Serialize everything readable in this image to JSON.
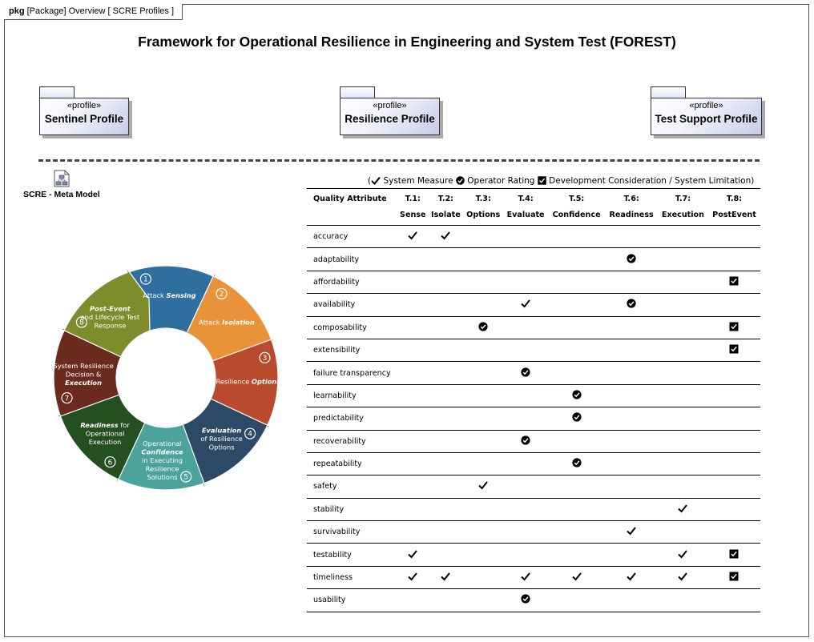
{
  "frame": {
    "kind": "pkg",
    "label": "[Package] Overview [ SCRE Profiles ]"
  },
  "title": "Framework for Operational Resilience in Engineering and System Test (FOREST)",
  "profiles": [
    {
      "stereotype": "«profile»",
      "name": "Sentinel Profile"
    },
    {
      "stereotype": "«profile»",
      "name": "Resilience Profile"
    },
    {
      "stereotype": "«profile»",
      "name": "Test Support Profile"
    }
  ],
  "meta_model": {
    "label": "SCRE - Meta Model",
    "icon": "diagram-icon"
  },
  "legend": {
    "open": "(",
    "system_measure": "System Measure",
    "operator_rating": "Operator Rating",
    "development_consideration": "Development Consideration / System Limitation)"
  },
  "cycle": {
    "colors": [
      "#2f6f9f",
      "#e8923a",
      "#b84a2e",
      "#2c4a66",
      "#4ba39b",
      "#244f1f",
      "#6b2a1e",
      "#7f8c2c"
    ],
    "steps": [
      {
        "num": "1",
        "l1": "Attack ",
        "l1b": "Sensing"
      },
      {
        "num": "2",
        "l1": "Attack ",
        "l1b": "Isolation"
      },
      {
        "num": "3",
        "l1": "Resilience ",
        "l1b": "Options"
      },
      {
        "num": "4",
        "b": "Evaluation",
        "l2": "of Resilience",
        "l3": "Options"
      },
      {
        "num": "5",
        "l1": "Operational",
        "b": "Confidence",
        "l3": "in Executing",
        "l4": "Resilience",
        "l5": "Solutions"
      },
      {
        "num": "6",
        "b": "Readiness",
        "l1": " for",
        "l2": "Operational",
        "l3": "Execution"
      },
      {
        "num": "7",
        "l1": "System Resilience",
        "l2": "Decision &",
        "b": "Execution"
      },
      {
        "num": "8",
        "b": "Post-Event",
        "l2": "and Lifecycle Test",
        "l3": "Response"
      }
    ]
  },
  "matrix": {
    "header": {
      "attribute": "Quality Attribute"
    },
    "columns": [
      {
        "code": "T.1:",
        "name": "Sense"
      },
      {
        "code": "T.2:",
        "name": "Isolate"
      },
      {
        "code": "T.3:",
        "name": "Options"
      },
      {
        "code": "T.4:",
        "name": "Evaluate"
      },
      {
        "code": "T.5:",
        "name": "Confidence"
      },
      {
        "code": "T.6:",
        "name": "Readiness"
      },
      {
        "code": "T.7:",
        "name": "Execution"
      },
      {
        "code": "T.8:",
        "name": "PostEvent"
      }
    ],
    "marks_legend": {
      "check": "System Measure",
      "circle": "Operator Rating",
      "box": "Development Consideration / System Limitation"
    },
    "rows": [
      {
        "attribute": "accuracy",
        "marks": [
          "check",
          "check",
          "",
          "",
          "",
          "",
          "",
          ""
        ]
      },
      {
        "attribute": "adaptability",
        "marks": [
          "",
          "",
          "",
          "",
          "",
          "circle",
          "",
          ""
        ]
      },
      {
        "attribute": "affordability",
        "marks": [
          "",
          "",
          "",
          "",
          "",
          "",
          "",
          "box"
        ]
      },
      {
        "attribute": "availability",
        "marks": [
          "",
          "",
          "",
          "check",
          "",
          "circle",
          "",
          ""
        ]
      },
      {
        "attribute": "composability",
        "marks": [
          "",
          "",
          "circle",
          "",
          "",
          "",
          "",
          "box"
        ]
      },
      {
        "attribute": "extensibility",
        "marks": [
          "",
          "",
          "",
          "",
          "",
          "",
          "",
          "box"
        ]
      },
      {
        "attribute": "failure transparency",
        "marks": [
          "",
          "",
          "",
          "circle",
          "",
          "",
          "",
          ""
        ]
      },
      {
        "attribute": "learnability",
        "marks": [
          "",
          "",
          "",
          "",
          "circle",
          "",
          "",
          ""
        ]
      },
      {
        "attribute": "predictability",
        "marks": [
          "",
          "",
          "",
          "",
          "circle",
          "",
          "",
          ""
        ]
      },
      {
        "attribute": "recoverability",
        "marks": [
          "",
          "",
          "",
          "circle",
          "",
          "",
          "",
          ""
        ]
      },
      {
        "attribute": "repeatability",
        "marks": [
          "",
          "",
          "",
          "",
          "circle",
          "",
          "",
          ""
        ]
      },
      {
        "attribute": "safety",
        "marks": [
          "",
          "",
          "check",
          "",
          "",
          "",
          "",
          ""
        ]
      },
      {
        "attribute": "stability",
        "marks": [
          "",
          "",
          "",
          "",
          "",
          "",
          "check",
          ""
        ]
      },
      {
        "attribute": "survivability",
        "marks": [
          "",
          "",
          "",
          "",
          "",
          "check",
          "",
          ""
        ]
      },
      {
        "attribute": "testability",
        "marks": [
          "check",
          "",
          "",
          "",
          "",
          "",
          "check",
          "box"
        ]
      },
      {
        "attribute": "timeliness",
        "marks": [
          "check",
          "check",
          "",
          "check",
          "check",
          "check",
          "check",
          "box"
        ]
      },
      {
        "attribute": "usability",
        "marks": [
          "",
          "",
          "",
          "circle",
          "",
          "",
          "",
          ""
        ]
      }
    ]
  }
}
